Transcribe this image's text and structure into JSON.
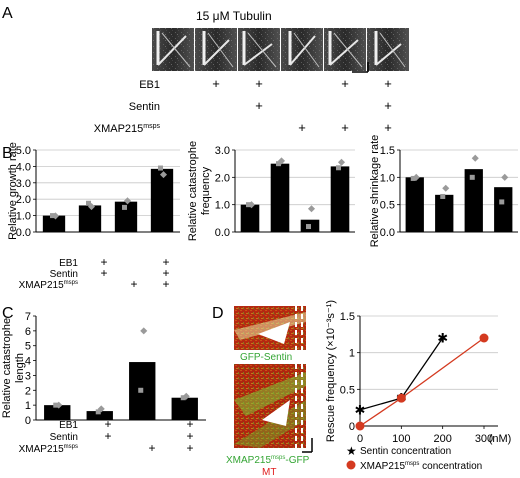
{
  "panels": {
    "A": {
      "label": "A",
      "title": "15 μM Tubulin",
      "rows": [
        "EB1",
        "Sentin",
        "XMAP215"
      ],
      "row_superscript": "msps",
      "columns": [
        [
          "",
          "",
          ""
        ],
        [
          "+",
          "",
          ""
        ],
        [
          "+",
          "+",
          ""
        ],
        [
          "",
          "",
          "+"
        ],
        [
          "+",
          "",
          "+"
        ],
        [
          "+",
          "+",
          "+"
        ]
      ]
    },
    "B": {
      "label": "B",
      "conditions_rows": [
        "EB1",
        "Sentin",
        "XMAP215"
      ],
      "row_superscript": "msps",
      "conditions": [
        [
          "",
          "",
          ""
        ],
        [
          "+",
          "+",
          ""
        ],
        [
          "",
          "",
          "+"
        ],
        [
          "+",
          "+",
          "+"
        ]
      ]
    },
    "C": {
      "label": "C",
      "conditions_rows": [
        "EB1",
        "Sentin",
        "XMAP215"
      ],
      "row_superscript": "msps",
      "conditions": [
        [
          "",
          "",
          ""
        ],
        [
          "+",
          "+",
          ""
        ],
        [
          "",
          "",
          "+"
        ],
        [
          "+",
          "+",
          "+"
        ]
      ]
    },
    "D": {
      "label": "D",
      "image_top_label": "GFP-Sentin",
      "image_bottom_label_main": "XMAP215",
      "image_bottom_label_sup": "msps",
      "image_bottom_label_tail": "-GFP",
      "image_bottom_label_mt": "MT",
      "legend": [
        {
          "marker": "★",
          "text_main": "Sentin concentration",
          "text_sup": "",
          "text_tail": ""
        },
        {
          "marker": "●",
          "text_main": "XMAP215",
          "text_sup": "msps",
          "text_tail": " concentration"
        }
      ]
    }
  },
  "colors": {
    "bar": "#000000",
    "replicate": "#9a9a9a",
    "grid": "#c8c8c8",
    "sentin_line": "#000000",
    "xmap_line": "#d43a20",
    "gfp_label": "#34a534",
    "mt_label": "#e02020"
  },
  "chart_data": [
    {
      "id": "growth",
      "type": "bar",
      "ylabel": "Relative growth rate",
      "ylim": [
        0,
        5
      ],
      "yticks": [
        "0.0",
        "1.0",
        "2.0",
        "3.0",
        "4.0",
        "5.0"
      ],
      "grid": true,
      "values": [
        1.0,
        1.62,
        1.85,
        3.85
      ],
      "replicates": [
        [
          0.98,
          1.0
        ],
        [
          1.55,
          1.75
        ],
        [
          1.9,
          1.5
        ],
        [
          3.5,
          3.9
        ]
      ]
    },
    {
      "id": "catastrophe",
      "type": "bar",
      "ylabel": "Relative catastrophe frequency",
      "ylim": [
        0,
        3
      ],
      "yticks": [
        "0.0",
        "1.0",
        "2.0",
        "3.0"
      ],
      "grid": true,
      "values": [
        1.0,
        2.5,
        0.45,
        2.4
      ],
      "replicates": [
        [
          1.0,
          1.0
        ],
        [
          2.6,
          2.5
        ],
        [
          0.85,
          0.2
        ],
        [
          2.55,
          2.35
        ]
      ]
    },
    {
      "id": "shrinkage",
      "type": "bar",
      "ylabel": "Relative shrinkage rate",
      "ylim": [
        0,
        1.5
      ],
      "yticks": [
        "0.0",
        "0.5",
        "1.0",
        "1.5"
      ],
      "grid": true,
      "values": [
        1.0,
        0.68,
        1.15,
        0.82
      ],
      "replicates": [
        [
          1.0,
          0.98
        ],
        [
          0.8,
          0.65
        ],
        [
          1.35,
          1.0
        ],
        [
          1.0,
          0.55
        ]
      ]
    },
    {
      "id": "catastrophe_length",
      "type": "bar",
      "ylabel": "Relative catastrophe length",
      "ylim": [
        0,
        7
      ],
      "yticks": [
        "0",
        "1",
        "2",
        "3",
        "4",
        "5",
        "6",
        "7"
      ],
      "grid": false,
      "values": [
        1.0,
        0.6,
        3.9,
        1.5
      ],
      "replicates": [
        [
          1.0,
          1.0
        ],
        [
          0.75,
          0.55
        ],
        [
          6.0,
          2.0
        ],
        [
          1.6,
          1.5
        ]
      ]
    },
    {
      "id": "rescue",
      "type": "line",
      "ylabel": "Rescue frequency (×10⁻³s⁻¹)",
      "xunit": "(nM)",
      "xlim": [
        0,
        300
      ],
      "ylim": [
        0,
        1.5
      ],
      "xticks": [
        "0",
        "100",
        "200",
        "300"
      ],
      "yticks": [
        "0",
        "0.5",
        "1",
        "1.5"
      ],
      "grid": true,
      "series": [
        {
          "key": "sentin",
          "x": [
            0,
            100,
            200
          ],
          "y": [
            0.22,
            0.38,
            1.2
          ]
        },
        {
          "key": "xmap",
          "x": [
            0,
            100,
            300
          ],
          "y": [
            0.0,
            0.38,
            1.2
          ]
        }
      ]
    }
  ]
}
